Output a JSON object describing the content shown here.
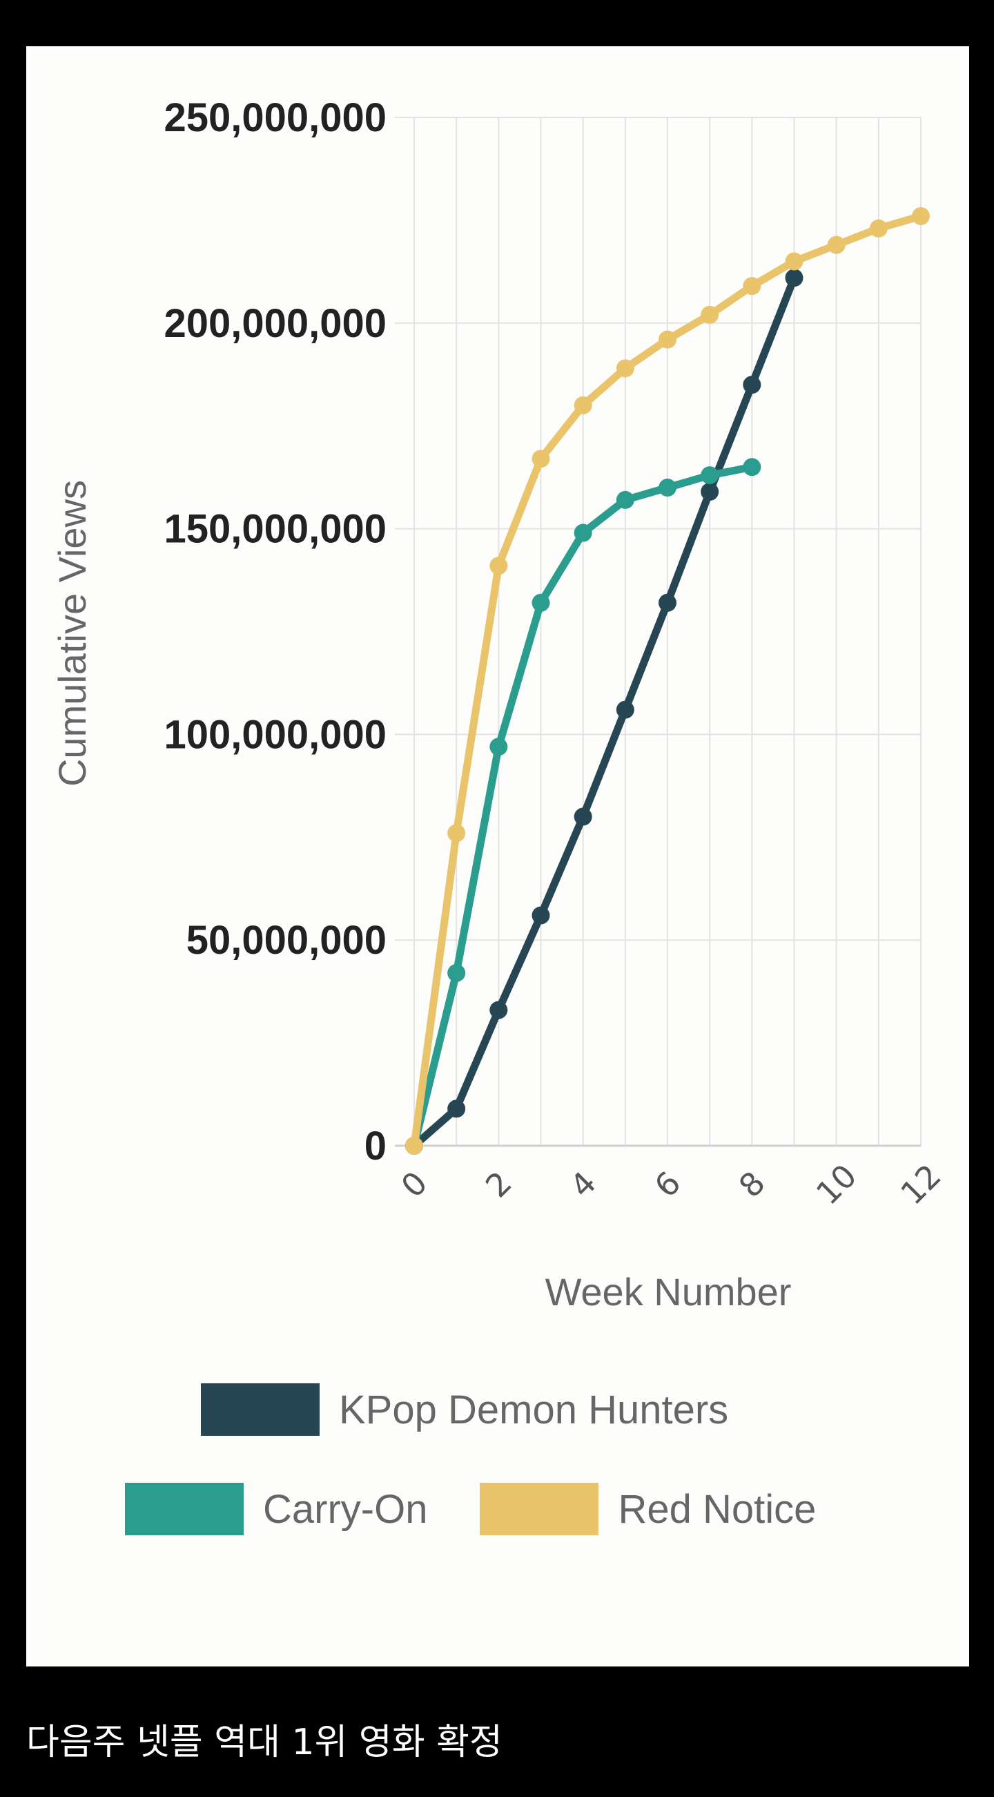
{
  "caption": "다음주 넷플 역대 1위 영화 확정",
  "chart_data": {
    "type": "line",
    "xlabel": "Week Number",
    "ylabel": "Cumulative Views",
    "xlim": [
      0,
      12
    ],
    "ylim": [
      0,
      250000000
    ],
    "x_ticks": [
      "0",
      "2",
      "4",
      "6",
      "8",
      "10",
      "12"
    ],
    "y_ticks": [
      "0",
      "50,000,000",
      "100,000,000",
      "150,000,000",
      "200,000,000",
      "250,000,000"
    ],
    "grid": true,
    "legend_position": "bottom",
    "series": [
      {
        "name": "KPop Demon Hunters",
        "color": "#264653",
        "x": [
          0,
          1,
          2,
          3,
          4,
          5,
          6,
          7,
          8,
          9
        ],
        "y": [
          0,
          9000000,
          33000000,
          56000000,
          80000000,
          106000000,
          132000000,
          159000000,
          185000000,
          211000000
        ]
      },
      {
        "name": "Carry-On",
        "color": "#2a9d8f",
        "x": [
          0,
          1,
          2,
          3,
          4,
          5,
          6,
          7,
          8
        ],
        "y": [
          0,
          42000000,
          97000000,
          132000000,
          149000000,
          157000000,
          160000000,
          163000000,
          165000000
        ]
      },
      {
        "name": "Red Notice",
        "color": "#e9c46a",
        "x": [
          0,
          1,
          2,
          3,
          4,
          5,
          6,
          7,
          8,
          9,
          10,
          11,
          12
        ],
        "y": [
          0,
          76000000,
          141000000,
          167000000,
          180000000,
          189000000,
          196000000,
          202000000,
          209000000,
          215000000,
          219000000,
          223000000,
          226000000
        ]
      }
    ]
  }
}
